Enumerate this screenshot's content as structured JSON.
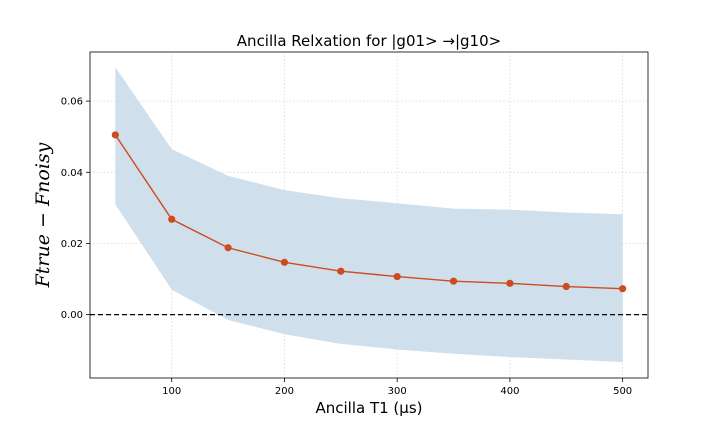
{
  "chart_data": {
    "type": "line",
    "title": "Ancilla Relxation for |g01> →|g10>",
    "xlabel": "Ancilla T1 (μs)",
    "ylabel": "Ftrue − Fnoisy",
    "x": [
      50,
      100,
      150,
      200,
      250,
      300,
      350,
      400,
      450,
      500
    ],
    "series": [
      {
        "values": [
          0.0505,
          0.0268,
          0.0188,
          0.0147,
          0.0122,
          0.0107,
          0.0094,
          0.0088,
          0.0079,
          0.0073
        ],
        "lower": [
          0.031,
          0.007,
          -0.0015,
          -0.0055,
          -0.0082,
          -0.0098,
          -0.011,
          -0.0119,
          -0.0126,
          -0.0133
        ],
        "upper": [
          0.0695,
          0.0465,
          0.039,
          0.035,
          0.0327,
          0.0313,
          0.0298,
          0.0295,
          0.0287,
          0.0282
        ],
        "line_color": "#cc4c1f",
        "band_color": "#cfe0ec"
      }
    ],
    "xticks": [
      100,
      200,
      300,
      400,
      500
    ],
    "xtick_labels": [
      "100",
      "200",
      "300",
      "400",
      "500"
    ],
    "yticks": [
      0.0,
      0.02,
      0.04,
      0.06
    ],
    "ytick_labels": [
      "0.00",
      "0.02",
      "0.04",
      "0.06"
    ],
    "xlim": [
      27.5,
      522.5
    ],
    "ylim": [
      -0.0178,
      0.0738
    ],
    "reference_line": {
      "y": 0.0,
      "style": "dashed",
      "color": "#000000"
    },
    "grid": true
  }
}
